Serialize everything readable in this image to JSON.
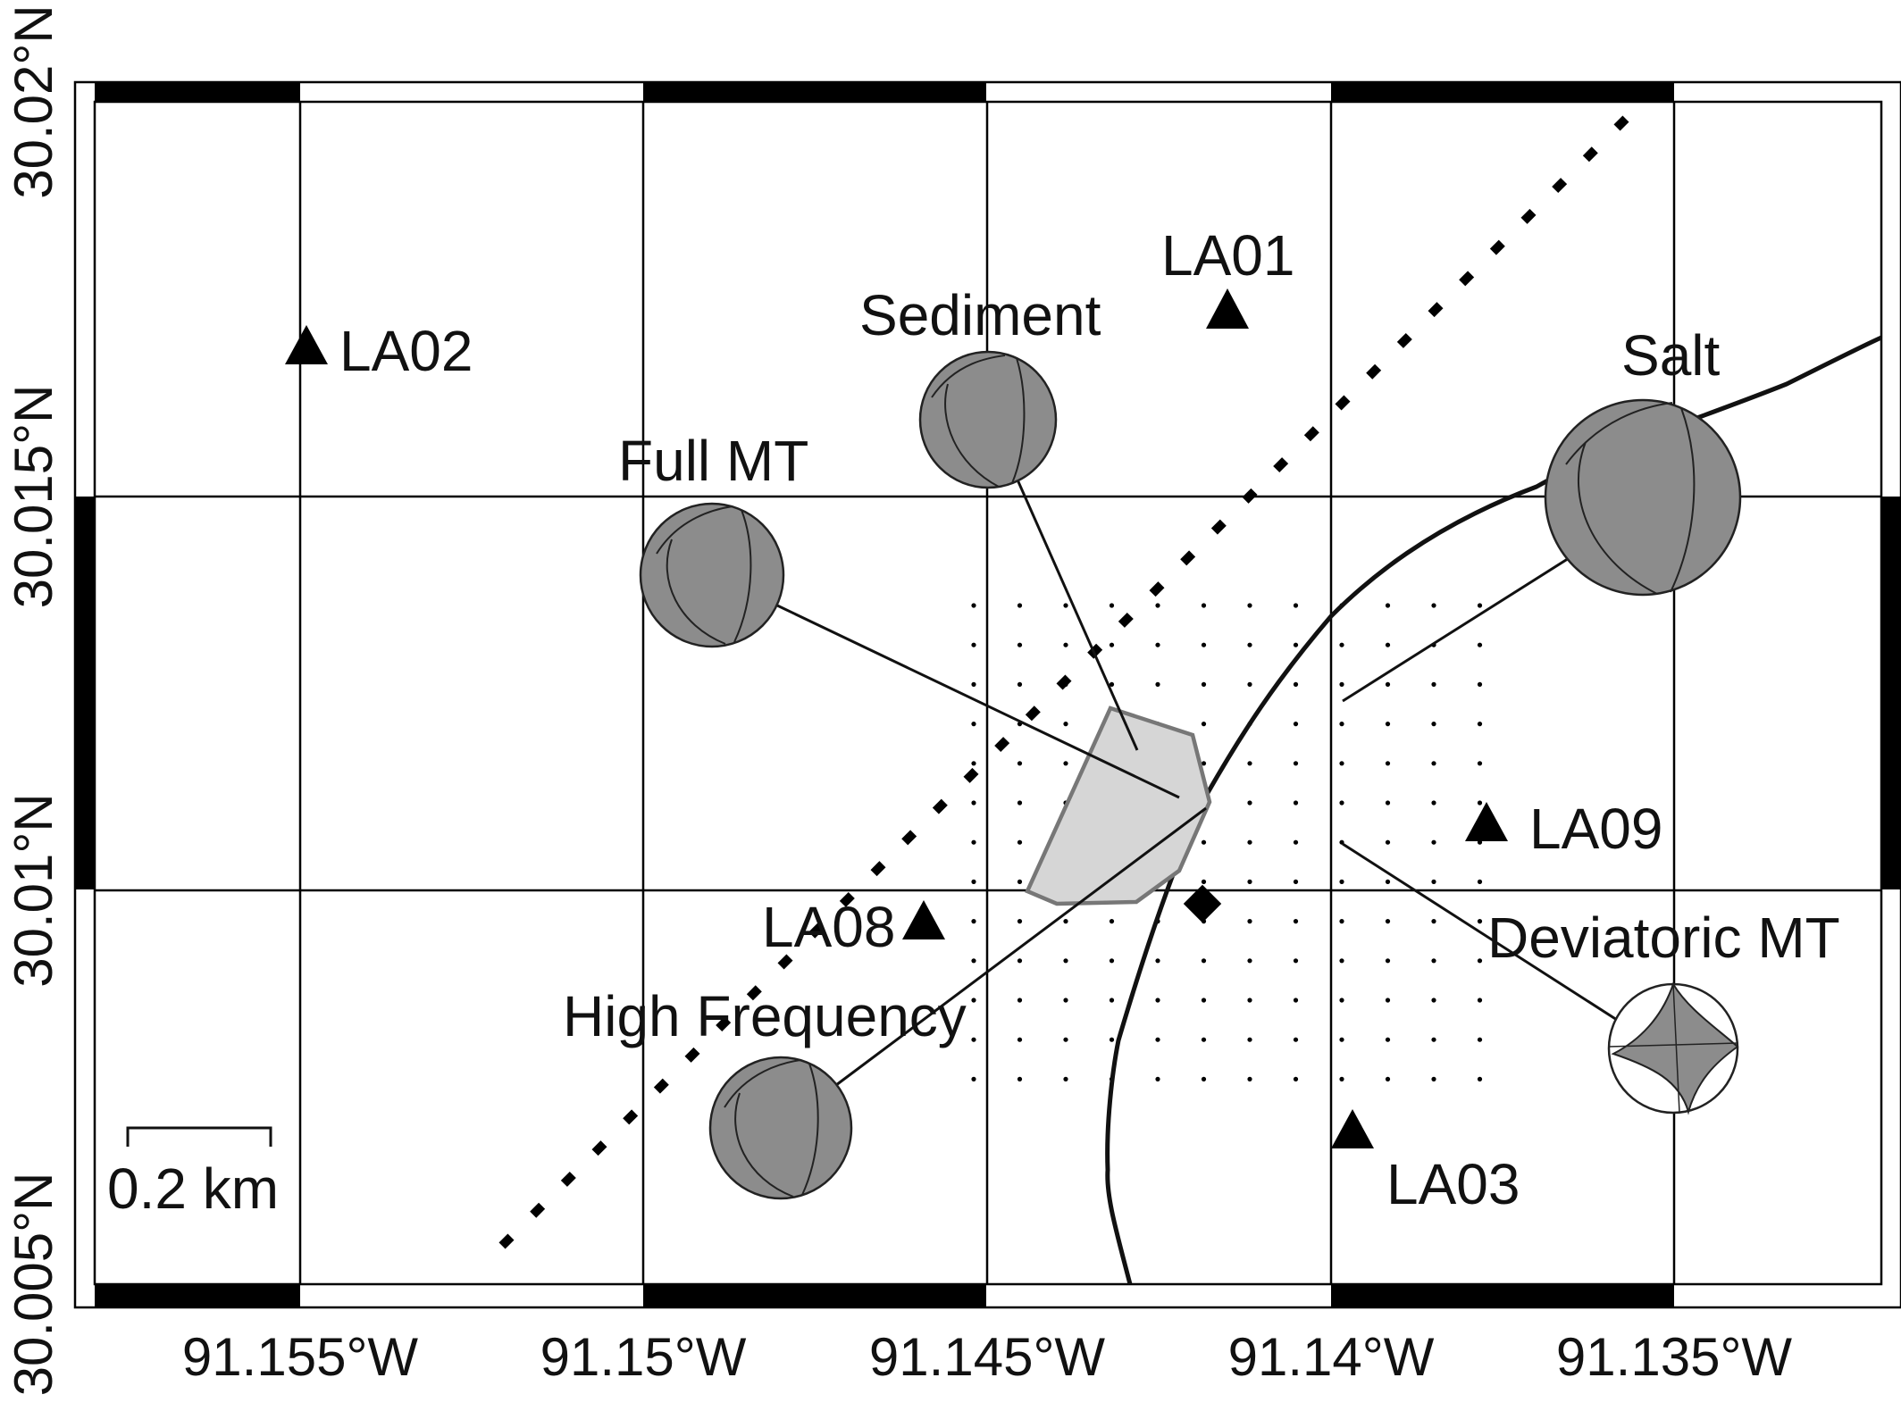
{
  "map": {
    "x_ticks": [
      "91.155°W",
      "91.15°W",
      "91.145°W",
      "91.14°W",
      "91.135°W"
    ],
    "y_ticks": [
      "30.02°N",
      "30.015°N",
      "30.01°N",
      "30.005°N"
    ],
    "scale_bar": {
      "label": "0.2 km",
      "length_km": 0.2
    },
    "stations": [
      {
        "name": "LA01",
        "lon": -91.1418,
        "lat": 30.0172
      },
      {
        "name": "LA02",
        "lon": -91.156,
        "lat": 30.0168
      },
      {
        "name": "LA03",
        "lon": -91.1397,
        "lat": 30.0065
      },
      {
        "name": "LA08",
        "lon": -91.1459,
        "lat": 30.0097
      },
      {
        "name": "LA09",
        "lon": -91.1378,
        "lat": 30.0108
      }
    ],
    "mechanisms": [
      {
        "name": "Sediment",
        "type": "full",
        "lon": -91.145,
        "lat": 30.016
      },
      {
        "name": "Full MT",
        "type": "full",
        "lon": -91.149,
        "lat": 30.014
      },
      {
        "name": "Salt",
        "type": "full",
        "lon": -91.135,
        "lat": 30.015
      },
      {
        "name": "High Frequency",
        "type": "full",
        "lon": -91.148,
        "lat": 30.007
      },
      {
        "name": "Deviatoric MT",
        "type": "deviatoric",
        "lon": -91.135,
        "lat": 30.008
      }
    ],
    "colors": {
      "mechanism_fill": "#8c8c8c",
      "sinkhole_fill": "#d6d6d6",
      "sinkhole_stroke": "#777777",
      "ink": "#111111"
    }
  }
}
